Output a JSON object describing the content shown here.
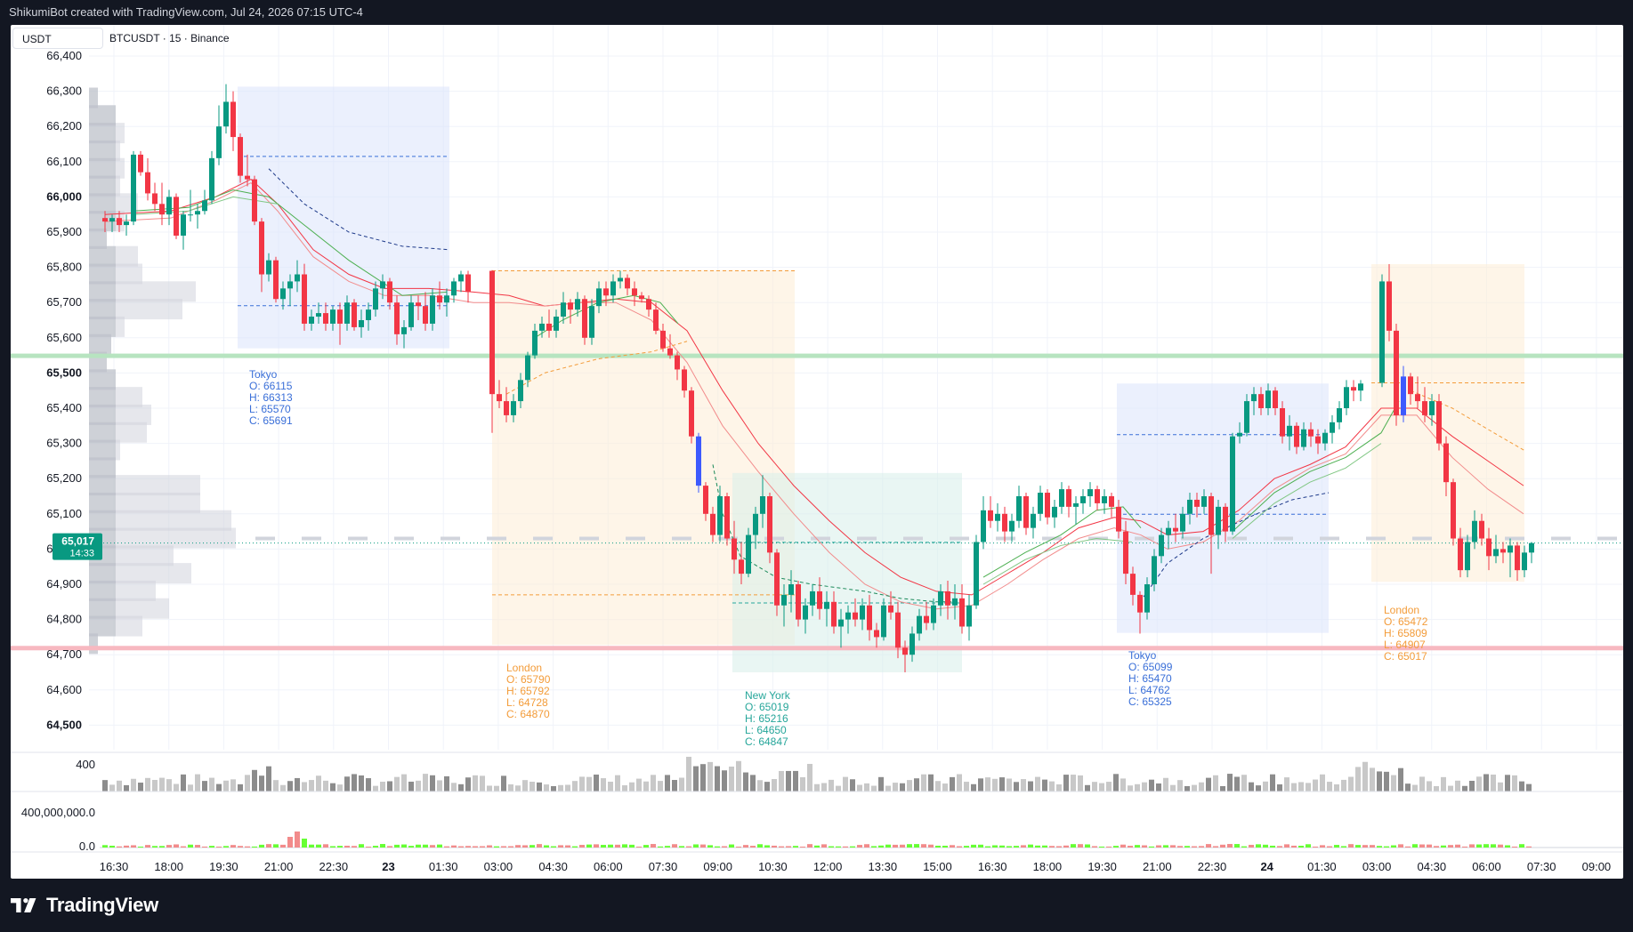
{
  "header": {
    "created_line": "ShikumiBot created with TradingView.com, Jul 24, 2026 07:15 UTC-4"
  },
  "chart": {
    "quote_currency": "USDT",
    "symbol_line": "BTCUSDT · 15 · Binance",
    "current_price_label": "65,017",
    "countdown_label": "14:33",
    "colors": {
      "up": "#089981",
      "down": "#f23645",
      "tokyo": "#3a6fd8",
      "london": "#f39c3a",
      "newyork": "#26a69a",
      "level_green": "#b7e4c0",
      "level_red": "#f7b8c0"
    },
    "price_ticks": [
      "66,400",
      "66,300",
      "66,200",
      "66,100",
      "66,000",
      "65,900",
      "65,800",
      "65,700",
      "65,600",
      "65,500",
      "65,400",
      "65,300",
      "65,200",
      "65,100",
      "65,000",
      "64,900",
      "64,800",
      "64,700",
      "64,600",
      "64,500"
    ],
    "bold_ticks": [
      "66,000",
      "65,500",
      "64,500"
    ],
    "time_ticks": [
      "16:30",
      "18:00",
      "19:30",
      "21:00",
      "22:30",
      "23",
      "01:30",
      "03:00",
      "04:30",
      "06:00",
      "07:30",
      "09:00",
      "10:30",
      "12:00",
      "13:30",
      "15:00",
      "16:30",
      "18:00",
      "19:30",
      "21:00",
      "22:30",
      "24",
      "01:30",
      "03:00",
      "04:30",
      "06:00",
      "07:30",
      "09:00"
    ],
    "bold_times": [
      "23",
      "24"
    ],
    "volume_axis_label": "400",
    "osc_axis_labels": [
      "400,000,000.0",
      "0.0"
    ],
    "sessions": [
      {
        "name": "Tokyo",
        "o": "O: 66115",
        "h": "H: 66313",
        "l": "L: 65570",
        "c": "C: 65691",
        "kind": "tokyo"
      },
      {
        "name": "London",
        "o": "O: 65790",
        "h": "H: 65792",
        "l": "L: 64728",
        "c": "C: 64870",
        "kind": "london"
      },
      {
        "name": "New York",
        "o": "O: 65019",
        "h": "H: 65216",
        "l": "L: 64650",
        "c": "C: 64847",
        "kind": "newyork"
      },
      {
        "name": "Tokyo",
        "o": "O: 65099",
        "h": "H: 65470",
        "l": "L: 64762",
        "c": "C: 65325",
        "kind": "tokyo"
      },
      {
        "name": "London",
        "o": "O: 65472",
        "h": "H: 65809",
        "l": "L: 64907",
        "c": "C: 65017",
        "kind": "london"
      }
    ]
  },
  "footer": {
    "brand": "TradingView"
  }
}
